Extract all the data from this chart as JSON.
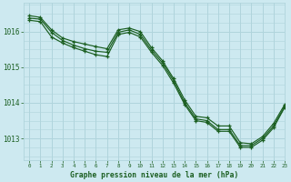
{
  "title": "Graphe pression niveau de la mer (hPa)",
  "bg_color": "#cde9f0",
  "grid_color": "#b0d4dc",
  "line_color": "#1a5e20",
  "xlim": [
    -0.5,
    23
  ],
  "ylim": [
    1012.4,
    1016.8
  ],
  "yticks": [
    1013,
    1014,
    1015,
    1016
  ],
  "xticks": [
    0,
    1,
    2,
    3,
    4,
    5,
    6,
    7,
    8,
    9,
    10,
    11,
    12,
    13,
    14,
    15,
    16,
    17,
    18,
    19,
    20,
    21,
    22,
    23
  ],
  "series": [
    [
      1016.45,
      1016.45,
      1016.05,
      1015.8,
      1015.7,
      1015.62,
      1015.55,
      1015.5,
      1015.95,
      1016.1,
      1015.95,
      1015.5,
      1015.15,
      1014.65,
      1014.05,
      1013.6,
      1013.55,
      1013.3,
      1013.3,
      1012.82,
      1012.8,
      1013.0,
      1013.35,
      1013.92
    ],
    [
      1016.4,
      1016.38,
      1016.02,
      1015.78,
      1015.67,
      1015.58,
      1015.52,
      1015.48,
      1016.0,
      1016.07,
      1015.92,
      1015.48,
      1015.12,
      1014.62,
      1014.02,
      1013.57,
      1013.52,
      1013.28,
      1013.28,
      1012.79,
      1012.78,
      1012.98,
      1013.32,
      1013.9
    ],
    [
      1016.38,
      1016.35,
      1015.82,
      1015.68,
      1015.55,
      1015.48,
      1015.38,
      1015.32,
      1016.02,
      1016.04,
      1015.88,
      1015.42,
      1015.08,
      1014.58,
      1013.98,
      1013.52,
      1013.47,
      1013.22,
      1013.22,
      1012.76,
      1012.75,
      1012.96,
      1013.3,
      1013.87
    ]
  ],
  "series2": [
    [
      1016.45,
      null,
      1016.02,
      null,
      null,
      null,
      null,
      null,
      null,
      null,
      null,
      null,
      null,
      null,
      null,
      null,
      null,
      null,
      null,
      null,
      null,
      null,
      null,
      1013.92
    ],
    [
      null,
      null,
      null,
      null,
      null,
      null,
      null,
      null,
      1016.0,
      null,
      null,
      null,
      null,
      null,
      null,
      null,
      null,
      null,
      null,
      null,
      null,
      null,
      null,
      null
    ]
  ]
}
